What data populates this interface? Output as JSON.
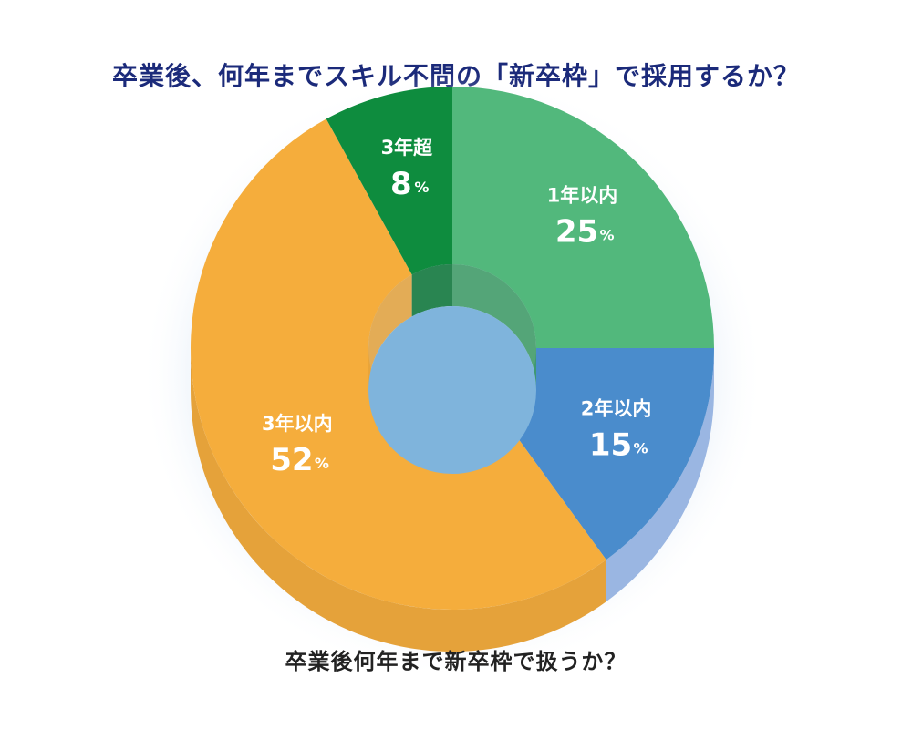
{
  "chart_data": {
    "type": "pie",
    "title": "卒業後、何年までスキル不問の「新卒枠」で採用するか？",
    "subtitle": "卒業後何年まで新卒枠で扱うか？",
    "unit": "%",
    "slices": [
      {
        "label": "1年以内",
        "value": 25,
        "color": "#52b87c",
        "side": "#3d9a62"
      },
      {
        "label": "2年以内",
        "value": 15,
        "color": "#4a8ccc",
        "side": "#9ab6e2"
      },
      {
        "label": "3年以内",
        "value": 52,
        "color": "#f5ad3c",
        "side": "#e5a23a"
      },
      {
        "label": "3年超",
        "value": 8,
        "color": "#0e8c3e",
        "side": "#0b7434"
      }
    ],
    "hole_color": "#7fb4dc"
  }
}
